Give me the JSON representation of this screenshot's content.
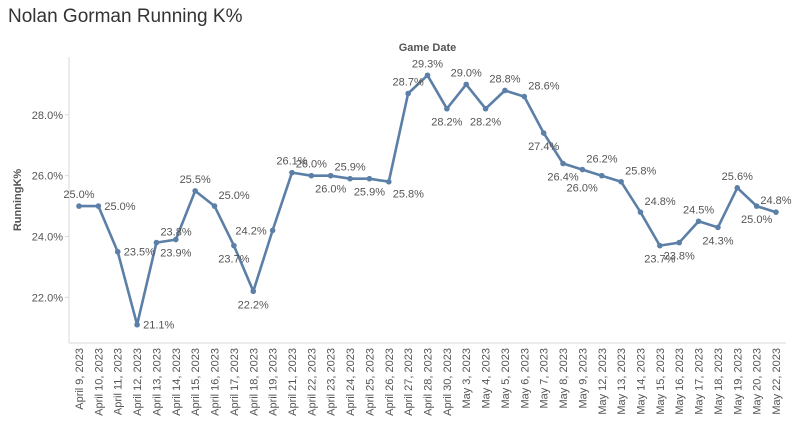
{
  "page": {
    "title": "Nolan Gorman Running K%"
  },
  "chart_data": {
    "type": "line",
    "title": "Nolan Gorman Running K%",
    "xlabel": "Game Date",
    "ylabel": "RunningK%",
    "ylim": [
      20.5,
      29.9
    ],
    "yticks": [
      22,
      24,
      26,
      28
    ],
    "ytick_labels": [
      "22.0%",
      "24.0%",
      "26.0%",
      "28.0%"
    ],
    "grid": false,
    "line_color": "#5b7fa6",
    "categories": [
      "April 9, 2023",
      "April 10, 2023",
      "April 11, 2023",
      "April 12, 2023",
      "April 13, 2023",
      "April 14, 2023",
      "April 15, 2023",
      "April 16, 2023",
      "April 17, 2023",
      "April 18, 2023",
      "April 19, 2023",
      "April 21, 2023",
      "April 22, 2023",
      "April 23, 2023",
      "April 24, 2023",
      "April 25, 2023",
      "April 26, 2023",
      "April 27, 2023",
      "April 28, 2023",
      "April 30, 2023",
      "May 3, 2023",
      "May 4, 2023",
      "May 5, 2023",
      "May 6, 2023",
      "May 7, 2023",
      "May 8, 2023",
      "May 9, 2023",
      "May 12, 2023",
      "May 13, 2023",
      "May 14, 2023",
      "May 15, 2023",
      "May 16, 2023",
      "May 17, 2023",
      "May 18, 2023",
      "May 19, 2023",
      "May 20, 2023",
      "May 22, 2023"
    ],
    "values": [
      25.0,
      25.0,
      23.5,
      21.1,
      23.8,
      23.9,
      25.5,
      25.0,
      23.7,
      22.2,
      24.2,
      26.1,
      26.0,
      26.0,
      25.9,
      25.9,
      25.8,
      28.7,
      29.3,
      28.2,
      29.0,
      28.2,
      28.8,
      28.6,
      27.4,
      26.4,
      26.2,
      26.0,
      25.8,
      24.8,
      23.7,
      23.8,
      24.5,
      24.3,
      25.6,
      25.0,
      24.8
    ],
    "labels": [
      {
        "index": 0,
        "text": "25.0%",
        "pos": "above"
      },
      {
        "index": 1,
        "text": "25.0%",
        "pos": "right"
      },
      {
        "index": 2,
        "text": "23.5%",
        "pos": "right"
      },
      {
        "index": 3,
        "text": "21.1%",
        "pos": "right"
      },
      {
        "index": 4,
        "text": "23.8%",
        "pos": "aboveright"
      },
      {
        "index": 5,
        "text": "23.9%",
        "pos": "below"
      },
      {
        "index": 6,
        "text": "25.5%",
        "pos": "above"
      },
      {
        "index": 7,
        "text": "25.0%",
        "pos": "aboveright"
      },
      {
        "index": 8,
        "text": "23.7%",
        "pos": "below"
      },
      {
        "index": 9,
        "text": "22.2%",
        "pos": "below"
      },
      {
        "index": 10,
        "text": "24.2%",
        "pos": "left"
      },
      {
        "index": 11,
        "text": "26.1%",
        "pos": "above"
      },
      {
        "index": 12,
        "text": "26.0%",
        "pos": "above"
      },
      {
        "index": 13,
        "text": "26.0%",
        "pos": "below"
      },
      {
        "index": 14,
        "text": "25.9%",
        "pos": "above"
      },
      {
        "index": 15,
        "text": "25.9%",
        "pos": "below"
      },
      {
        "index": 16,
        "text": "25.8%",
        "pos": "belowright"
      },
      {
        "index": 17,
        "text": "28.7%",
        "pos": "above"
      },
      {
        "index": 18,
        "text": "29.3%",
        "pos": "above"
      },
      {
        "index": 19,
        "text": "28.2%",
        "pos": "below"
      },
      {
        "index": 20,
        "text": "29.0%",
        "pos": "above"
      },
      {
        "index": 21,
        "text": "28.2%",
        "pos": "below"
      },
      {
        "index": 22,
        "text": "28.8%",
        "pos": "above"
      },
      {
        "index": 23,
        "text": "28.6%",
        "pos": "aboveright"
      },
      {
        "index": 24,
        "text": "27.4%",
        "pos": "below"
      },
      {
        "index": 25,
        "text": "26.4%",
        "pos": "below"
      },
      {
        "index": 26,
        "text": "26.2%",
        "pos": "aboveright"
      },
      {
        "index": 27,
        "text": "26.0%",
        "pos": "belowleft"
      },
      {
        "index": 28,
        "text": "25.8%",
        "pos": "aboveright"
      },
      {
        "index": 29,
        "text": "24.8%",
        "pos": "aboveright"
      },
      {
        "index": 30,
        "text": "23.7%",
        "pos": "below"
      },
      {
        "index": 31,
        "text": "23.8%",
        "pos": "below"
      },
      {
        "index": 32,
        "text": "24.5%",
        "pos": "above"
      },
      {
        "index": 33,
        "text": "24.3%",
        "pos": "below"
      },
      {
        "index": 34,
        "text": "25.6%",
        "pos": "above"
      },
      {
        "index": 35,
        "text": "25.0%",
        "pos": "below"
      },
      {
        "index": 36,
        "text": "24.8%",
        "pos": "above"
      }
    ]
  }
}
